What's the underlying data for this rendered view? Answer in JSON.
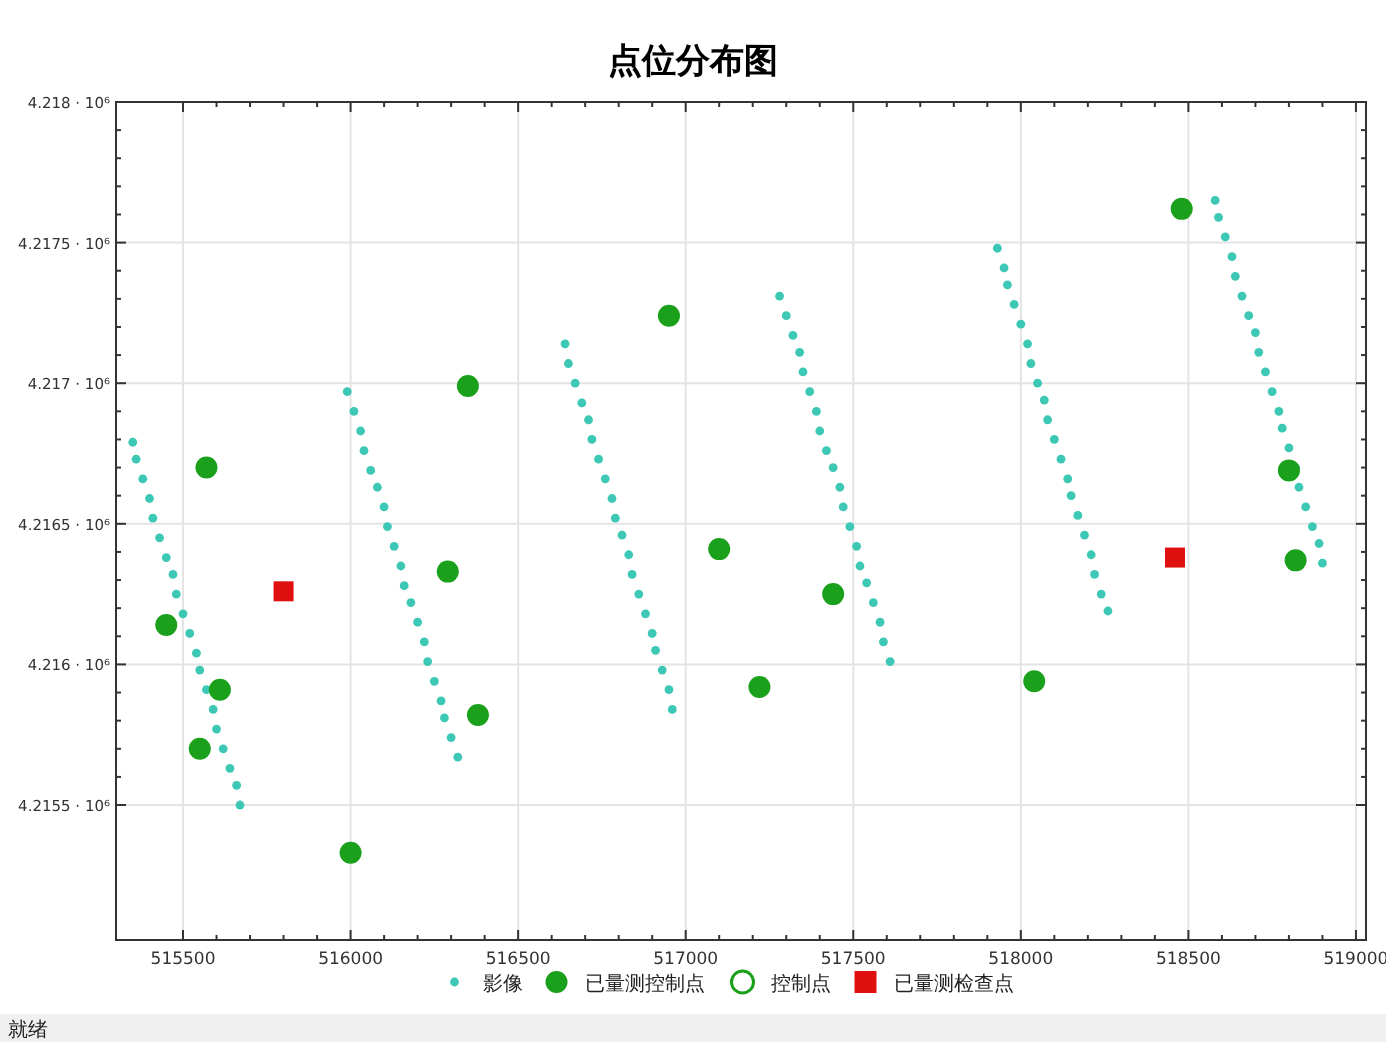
{
  "chart_data": {
    "type": "scatter",
    "title": "点位分布图",
    "xlim": [
      515300,
      519030
    ],
    "ylim": [
      4215020,
      4218000
    ],
    "xticks": [
      515500,
      516000,
      516500,
      517000,
      517500,
      518000,
      518500,
      519000
    ],
    "yticks": [
      {
        "value": 4215500,
        "label": "4.2155 · 10⁶"
      },
      {
        "value": 4216000,
        "label": "4.216 · 10⁶"
      },
      {
        "value": 4216500,
        "label": "4.2165 · 10⁶"
      },
      {
        "value": 4217000,
        "label": "4.217 · 10⁶"
      },
      {
        "value": 4217500,
        "label": "4.2175 · 10⁶"
      },
      {
        "value": 4218000,
        "label": "4.218 · 10⁶"
      }
    ],
    "grid": true,
    "legend": "bottom",
    "annotations": [
      "就绪"
    ],
    "series": [
      {
        "name": "影像",
        "color": "#3cc8b4",
        "marker": "circle",
        "x": [
          515350,
          515990,
          516640,
          517280,
          517930,
          518580,
          515360,
          516010,
          516650,
          517300,
          517950,
          518590,
          515380,
          516030,
          516670,
          517320,
          517960,
          518610,
          515400,
          516040,
          516690,
          517340,
          517980,
          518630,
          515410,
          516060,
          516710,
          517350,
          518000,
          518640,
          515430,
          516080,
          516720,
          517370,
          518020,
          518660,
          515450,
          516100,
          516740,
          517390,
          518030,
          518680,
          515470,
          516110,
          516760,
          517400,
          518050,
          518700,
          515480,
          516130,
          516780,
          517420,
          518070,
          518710,
          515500,
          516150,
          516790,
          517440,
          518080,
          518730,
          515520,
          516160,
          516810,
          517460,
          518100,
          518750,
          515540,
          516180,
          516830,
          517470,
          518120,
          518770,
          515550,
          516200,
          516840,
          517490,
          518140,
          518780,
          515570,
          516220,
          516860,
          517510,
          518150,
          518800,
          515590,
          516230,
          516880,
          517520,
          518170,
          518820,
          515600,
          516250,
          516900,
          517540,
          518190,
          518830,
          515620,
          516270,
          516910,
          517560,
          518210,
          518850,
          515640,
          516280,
          516930,
          517580,
          518220,
          518870,
          515660,
          516300,
          516950,
          517590,
          518240,
          518890,
          515670,
          516320,
          516960,
          517610,
          518260,
          518900
        ],
        "values": [
          4216790,
          4216970,
          4217140,
          4217310,
          4217480,
          4217650,
          4216730,
          4216900,
          4217070,
          4217240,
          4217410,
          4217590,
          4216660,
          4216830,
          4217000,
          4217170,
          4217350,
          4217520,
          4216590,
          4216760,
          4216930,
          4217110,
          4217280,
          4217450,
          4216520,
          4216690,
          4216870,
          4217040,
          4217210,
          4217380,
          4216450,
          4216630,
          4216800,
          4216970,
          4217140,
          4217310,
          4216380,
          4216560,
          4216730,
          4216900,
          4217070,
          4217240,
          4216320,
          4216490,
          4216660,
          4216830,
          4217000,
          4217180,
          4216250,
          4216420,
          4216590,
          4216760,
          4216940,
          4217110,
          4216180,
          4216350,
          4216520,
          4216700,
          4216870,
          4217040,
          4216110,
          4216280,
          4216460,
          4216630,
          4216800,
          4216970,
          4216040,
          4216220,
          4216390,
          4216560,
          4216730,
          4216900,
          4215980,
          4216150,
          4216320,
          4216490,
          4216660,
          4216840,
          4215910,
          4216080,
          4216250,
          4216420,
          4216600,
          4216770,
          4215840,
          4216010,
          4216180,
          4216350,
          4216530,
          4216700,
          4215770,
          4215940,
          4216110,
          4216290,
          4216460,
          4216630,
          4215700,
          4215870,
          4216050,
          4216220,
          4216390,
          4216560,
          4215630,
          4215810,
          4215980,
          4216150,
          4216320,
          4216490,
          4215570,
          4215740,
          4215910,
          4216080,
          4216250,
          4216430,
          4215500,
          4215670,
          4215840,
          4216010,
          4216190,
          4216360
        ]
      },
      {
        "name": "已量测控制点",
        "color": "#1aa01a",
        "marker": "circle",
        "x": [
          518480,
          516950,
          516350,
          515570,
          518800,
          517100,
          516290,
          517440,
          518820,
          515450,
          515610,
          517220,
          518040,
          516380,
          515550,
          516000
        ],
        "values": [
          4217620,
          4217240,
          4216990,
          4216700,
          4216690,
          4216410,
          4216330,
          4216250,
          4216370,
          4216140,
          4215910,
          4215920,
          4215940,
          4215820,
          4215700,
          4215330
        ]
      },
      {
        "name": "控制点",
        "color": "#1aa01a",
        "marker": "circle"
      },
      {
        "name": "已量测检查点",
        "color": "#e01010",
        "marker": "square",
        "x": [
          515800,
          518460
        ],
        "values": [
          4216260,
          4216380
        ]
      }
    ]
  }
}
